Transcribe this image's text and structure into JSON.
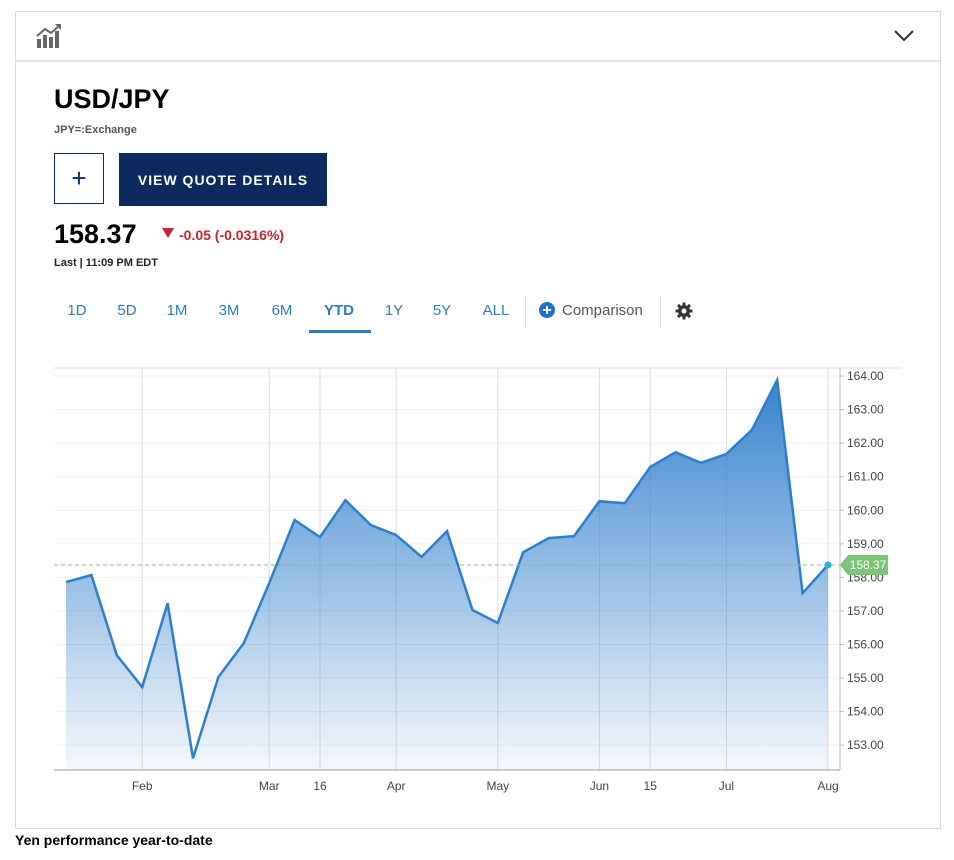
{
  "header": {
    "title": "USD/JPY",
    "symbol": "JPY=:Exchange"
  },
  "buttons": {
    "add": "+",
    "details": "VIEW QUOTE DETAILS"
  },
  "quote": {
    "price": "158.37",
    "change": "-0.05 (-0.0316%)",
    "time": "Last | 11:09 PM EDT"
  },
  "ranges": [
    "1D",
    "5D",
    "1M",
    "3M",
    "6M",
    "YTD",
    "1Y",
    "5Y",
    "ALL"
  ],
  "active_range": 5,
  "comparison": "Comparison",
  "chart_data": {
    "type": "area",
    "color": "#2f7ecb",
    "categories": [
      null,
      null,
      null,
      "Feb",
      null,
      null,
      null,
      null,
      "Mar",
      null,
      "16",
      null,
      null,
      "Apr",
      null,
      null,
      null,
      "May",
      null,
      null,
      null,
      "Jun",
      null,
      "15",
      null,
      null,
      "Jul",
      null,
      null,
      null,
      "Aug"
    ],
    "values": [
      157.86,
      158.07,
      155.68,
      154.73,
      157.23,
      152.61,
      155.03,
      156.04,
      157.83,
      159.71,
      159.2,
      160.3,
      159.56,
      159.26,
      158.61,
      159.38,
      157.03,
      156.64,
      158.75,
      159.17,
      159.23,
      160.27,
      160.21,
      161.29,
      161.73,
      161.41,
      161.68,
      162.39,
      163.88,
      157.53,
      158.37
    ],
    "ylim": [
      152.26,
      164.24
    ],
    "yticks": [
      {
        "value": 153,
        "label": "153.00"
      },
      {
        "value": 154,
        "label": "154.00"
      },
      {
        "value": 155,
        "label": "155.00"
      },
      {
        "value": 156,
        "label": "156.00"
      },
      {
        "value": 157,
        "label": "157.00"
      },
      {
        "value": 158,
        "label": "158.00"
      },
      {
        "value": 159,
        "label": "159.00"
      },
      {
        "value": 160,
        "label": "160.00"
      },
      {
        "value": 161,
        "label": "161.00"
      },
      {
        "value": 162,
        "label": "162.00"
      },
      {
        "value": 163,
        "label": "163.00"
      },
      {
        "value": 164,
        "label": "164.00"
      }
    ],
    "marker": {
      "value": 158.37,
      "label": "158.37",
      "color": "#7cc576"
    },
    "grid": true
  },
  "caption": "Yen performance year-to-date"
}
